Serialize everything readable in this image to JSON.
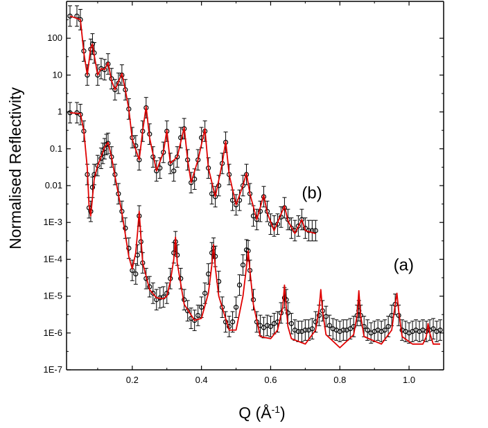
{
  "chart_data": {
    "type": "scatter",
    "xlabel": "Q (Å",
    "xlabel_sup": "-1",
    "xlabel_end": ")",
    "ylabel": "Normalised Reflectivity",
    "xscale": "linear",
    "yscale": "log",
    "xlim": [
      0.01,
      1.1
    ],
    "ylim": [
      1e-07,
      1000
    ],
    "xticks": [
      0.2,
      0.4,
      0.6,
      0.8,
      1.0
    ],
    "xtick_labels": [
      "0.2",
      "0.4",
      "0.6",
      "0.8",
      "1.0"
    ],
    "yticks": [
      1e-07,
      1e-06,
      1e-05,
      0.0001,
      0.001,
      0.01,
      0.1,
      1,
      10,
      100
    ],
    "ytick_labels": [
      "1E-7",
      "1E-6",
      "1E-5",
      "1E-4",
      "1E-3",
      "0.01",
      "0.1",
      "1",
      "10",
      "100"
    ],
    "annotations": [
      {
        "text": "(b)",
        "x": 0.69,
        "y": 0.0045
      },
      {
        "text": "(a)",
        "x": 0.955,
        "y": 5e-05
      }
    ],
    "colors": {
      "data": "#000000",
      "fit": "#e00000",
      "axis": "#000000"
    },
    "series": [
      {
        "name": "(a) data",
        "kind": "markers",
        "x": [
          0.02,
          0.04,
          0.05,
          0.06,
          0.07,
          0.075,
          0.08,
          0.085,
          0.09,
          0.1,
          0.11,
          0.115,
          0.12,
          0.125,
          0.13,
          0.14,
          0.15,
          0.16,
          0.17,
          0.18,
          0.19,
          0.2,
          0.21,
          0.215,
          0.22,
          0.225,
          0.23,
          0.24,
          0.25,
          0.26,
          0.27,
          0.28,
          0.29,
          0.3,
          0.31,
          0.32,
          0.325,
          0.33,
          0.34,
          0.35,
          0.36,
          0.37,
          0.38,
          0.39,
          0.4,
          0.41,
          0.42,
          0.43,
          0.435,
          0.44,
          0.45,
          0.46,
          0.47,
          0.48,
          0.49,
          0.5,
          0.51,
          0.52,
          0.53,
          0.535,
          0.54,
          0.55,
          0.56,
          0.57,
          0.58,
          0.59,
          0.6,
          0.61,
          0.62,
          0.63,
          0.64,
          0.645,
          0.65,
          0.66,
          0.67,
          0.68,
          0.69,
          0.7,
          0.71,
          0.72,
          0.73,
          0.74,
          0.75,
          0.76,
          0.77,
          0.78,
          0.79,
          0.8,
          0.81,
          0.82,
          0.83,
          0.84,
          0.85,
          0.855,
          0.86,
          0.87,
          0.88,
          0.89,
          0.9,
          0.91,
          0.92,
          0.93,
          0.94,
          0.95,
          0.96,
          0.97,
          0.98,
          0.99,
          1.0,
          1.01,
          1.02,
          1.03,
          1.04,
          1.05,
          1.06,
          1.07,
          1.08,
          1.09
        ],
        "y": [
          0.95,
          0.95,
          0.85,
          0.3,
          0.02,
          0.0025,
          0.002,
          0.009,
          0.02,
          0.035,
          0.055,
          0.075,
          0.1,
          0.13,
          0.14,
          0.06,
          0.02,
          0.006,
          0.002,
          0.0007,
          0.0002,
          5e-05,
          4e-05,
          0.00013,
          0.0015,
          0.0003,
          8e-05,
          3e-05,
          1.8e-05,
          1.2e-05,
          8e-06,
          9e-06,
          9.5e-06,
          1.2e-05,
          3e-05,
          0.00015,
          0.0003,
          0.00013,
          3e-05,
          8e-06,
          4e-06,
          2.5e-06,
          2.2e-06,
          3e-06,
          5e-06,
          1.2e-05,
          4e-05,
          0.00015,
          0.0002,
          0.00012,
          2.5e-05,
          5e-06,
          2e-06,
          1.5e-06,
          2e-06,
          5e-06,
          2e-05,
          7e-05,
          0.00018,
          0.00017,
          5e-05,
          8e-06,
          2e-06,
          1.6e-06,
          1.4e-06,
          1.6e-06,
          1.5e-06,
          1.8e-06,
          2e-06,
          3.5e-06,
          9e-06,
          8e-06,
          3.5e-06,
          1.8e-06,
          1.2e-06,
          1.1e-06,
          1.1e-06,
          1.2e-06,
          1.2e-06,
          1.3e-06,
          2e-06,
          3e-06,
          4e-06,
          2.8e-06,
          1.6e-06,
          1.3e-06,
          1.2e-06,
          1.1e-06,
          1.2e-06,
          1.2e-06,
          1.3e-06,
          1.5e-06,
          3e-06,
          4e-06,
          3e-06,
          1.5e-06,
          1.2e-06,
          1e-06,
          1.1e-06,
          1.2e-06,
          1.1e-06,
          1.2e-06,
          1.5e-06,
          3e-06,
          6e-06,
          3e-06,
          1.2e-06,
          1.1e-06,
          1e-06,
          1.1e-06,
          1.2e-06,
          1.1e-06,
          1.2e-06,
          1.1e-06,
          1.2e-06,
          1.3e-06,
          1.1e-06,
          1.2e-06
        ]
      },
      {
        "name": "(a) fit",
        "kind": "line",
        "x": [
          0.02,
          0.05,
          0.06,
          0.07,
          0.075,
          0.08,
          0.09,
          0.1,
          0.11,
          0.12,
          0.13,
          0.14,
          0.15,
          0.17,
          0.19,
          0.2,
          0.21,
          0.215,
          0.22,
          0.225,
          0.23,
          0.25,
          0.27,
          0.29,
          0.3,
          0.31,
          0.32,
          0.325,
          0.33,
          0.35,
          0.38,
          0.4,
          0.42,
          0.43,
          0.435,
          0.44,
          0.45,
          0.48,
          0.5,
          0.52,
          0.53,
          0.535,
          0.54,
          0.55,
          0.57,
          0.6,
          0.62,
          0.635,
          0.64,
          0.645,
          0.65,
          0.66,
          0.7,
          0.73,
          0.74,
          0.745,
          0.75,
          0.76,
          0.8,
          0.84,
          0.85,
          0.855,
          0.86,
          0.87,
          0.92,
          0.95,
          0.96,
          0.965,
          0.97,
          0.98,
          1.01,
          1.04,
          1.05,
          1.055,
          1.06,
          1.07,
          1.09
        ],
        "y": [
          0.95,
          0.9,
          0.3,
          0.03,
          0.003,
          0.0015,
          0.015,
          0.035,
          0.06,
          0.11,
          0.15,
          0.06,
          0.018,
          0.0018,
          0.00012,
          5.5e-05,
          0.00015,
          0.0005,
          0.002,
          0.0004,
          8e-05,
          1.5e-05,
          9e-06,
          8.5e-06,
          1e-05,
          2.5e-05,
          0.0001,
          0.0004,
          8e-05,
          6e-06,
          2.2e-06,
          2.5e-06,
          1.2e-05,
          7e-05,
          0.00025,
          6e-05,
          1e-05,
          1.2e-06,
          1.2e-06,
          1e-05,
          6e-05,
          0.00017,
          5e-05,
          6e-06,
          8e-07,
          7e-07,
          1.2e-06,
          5e-06,
          2e-05,
          5e-06,
          1.5e-06,
          7e-07,
          5e-07,
          1.2e-06,
          4.5e-06,
          1.5e-05,
          4e-06,
          9e-07,
          4e-07,
          9e-07,
          3e-06,
          1.4e-05,
          3e-06,
          8e-07,
          5e-07,
          1.2e-06,
          6e-06,
          1.2e-05,
          4e-06,
          8e-07,
          5e-07,
          5e-07,
          8e-07,
          1.8e-06,
          1e-06,
          5e-07,
          5e-07
        ]
      },
      {
        "name": "(b) data",
        "kind": "markers",
        "x": [
          0.02,
          0.04,
          0.05,
          0.06,
          0.07,
          0.08,
          0.085,
          0.09,
          0.1,
          0.11,
          0.12,
          0.13,
          0.14,
          0.15,
          0.16,
          0.17,
          0.18,
          0.19,
          0.2,
          0.21,
          0.22,
          0.23,
          0.24,
          0.25,
          0.26,
          0.27,
          0.28,
          0.29,
          0.3,
          0.31,
          0.32,
          0.33,
          0.34,
          0.35,
          0.36,
          0.37,
          0.38,
          0.39,
          0.4,
          0.41,
          0.42,
          0.43,
          0.44,
          0.45,
          0.46,
          0.47,
          0.48,
          0.49,
          0.5,
          0.51,
          0.52,
          0.53,
          0.54,
          0.55,
          0.56,
          0.57,
          0.58,
          0.59,
          0.6,
          0.61,
          0.62,
          0.63,
          0.64,
          0.65,
          0.66,
          0.67,
          0.68,
          0.69,
          0.7,
          0.71,
          0.72,
          0.73
        ],
        "y": [
          400,
          400,
          320,
          45,
          10,
          50,
          70,
          40,
          10,
          15,
          14,
          20,
          8,
          4,
          6,
          10,
          4,
          1.2,
          0.2,
          0.12,
          0.05,
          0.3,
          1.3,
          0.25,
          0.06,
          0.025,
          0.03,
          0.08,
          0.3,
          0.04,
          0.025,
          0.06,
          0.2,
          0.35,
          0.05,
          0.012,
          0.015,
          0.05,
          0.2,
          0.3,
          0.03,
          0.006,
          0.005,
          0.01,
          0.04,
          0.15,
          0.02,
          0.004,
          0.003,
          0.004,
          0.01,
          0.02,
          0.006,
          0.0015,
          0.0012,
          0.002,
          0.005,
          0.002,
          0.0009,
          0.0008,
          0.0009,
          0.0014,
          0.0025,
          0.0012,
          0.0007,
          0.0006,
          0.0008,
          0.0012,
          0.0007,
          0.0006,
          0.0006,
          0.0006
        ]
      },
      {
        "name": "(b) fit",
        "kind": "line",
        "x": [
          0.02,
          0.05,
          0.06,
          0.07,
          0.08,
          0.085,
          0.09,
          0.1,
          0.11,
          0.12,
          0.13,
          0.14,
          0.15,
          0.17,
          0.18,
          0.19,
          0.2,
          0.22,
          0.23,
          0.24,
          0.25,
          0.27,
          0.29,
          0.3,
          0.31,
          0.33,
          0.35,
          0.36,
          0.37,
          0.39,
          0.41,
          0.42,
          0.44,
          0.46,
          0.47,
          0.48,
          0.5,
          0.52,
          0.53,
          0.54,
          0.56,
          0.58,
          0.59,
          0.61,
          0.64,
          0.65,
          0.67,
          0.69,
          0.7,
          0.73
        ],
        "y": [
          400,
          320,
          40,
          10,
          55,
          70,
          35,
          10,
          15,
          14,
          22,
          7,
          4,
          11,
          4,
          1.2,
          0.18,
          0.05,
          0.3,
          1.4,
          0.2,
          0.025,
          0.08,
          0.32,
          0.04,
          0.06,
          0.38,
          0.05,
          0.012,
          0.05,
          0.35,
          0.03,
          0.005,
          0.04,
          0.16,
          0.02,
          0.003,
          0.01,
          0.022,
          0.006,
          0.0012,
          0.0055,
          0.0018,
          0.0006,
          0.0028,
          0.0011,
          0.0005,
          0.0012,
          0.0006,
          0.0005
        ]
      }
    ]
  }
}
